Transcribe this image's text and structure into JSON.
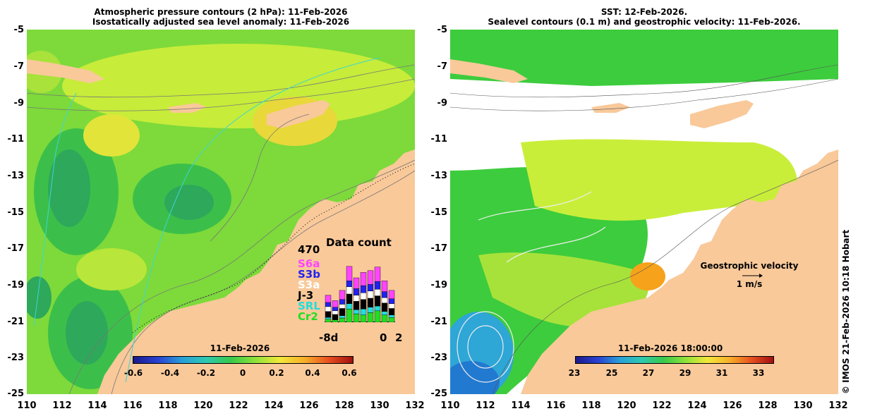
{
  "left_panel": {
    "title_line1": "Atmospheric pressure contours (2 hPa): 11-Feb-2026",
    "title_line2": "Isostatically adjusted sea level anomaly: 11-Feb-2026",
    "colorbar_title": "11-Feb-2026",
    "colorbar_ticks": [
      "-0.6",
      "-0.4",
      "-0.2",
      "0",
      "0.2",
      "0.4",
      "0.6"
    ],
    "inset": {
      "title": "Data count",
      "max_label": "470",
      "x_start": "-8d",
      "x_mid": "0",
      "x_end": "2",
      "satellites": [
        {
          "name": "S6a",
          "color": "#ff44ff"
        },
        {
          "name": "S3b",
          "color": "#2222ee"
        },
        {
          "name": "S3a",
          "color": "#ffffff"
        },
        {
          "name": "J-3",
          "color": "#000000"
        },
        {
          "name": "SRL",
          "color": "#22dddd"
        },
        {
          "name": "Cr2",
          "color": "#22dd22"
        }
      ],
      "bar_values": [
        [
          60,
          35,
          40,
          50,
          15,
          25
        ],
        [
          55,
          30,
          30,
          45,
          0,
          20
        ],
        [
          75,
          40,
          35,
          60,
          20,
          35
        ],
        [
          120,
          50,
          60,
          80,
          45,
          110
        ],
        [
          90,
          55,
          50,
          70,
          35,
          70
        ],
        [
          110,
          60,
          55,
          80,
          50,
          60
        ],
        [
          115,
          55,
          60,
          75,
          45,
          80
        ],
        [
          120,
          65,
          55,
          85,
          40,
          95
        ],
        [
          90,
          50,
          45,
          70,
          30,
          60
        ],
        [
          70,
          40,
          40,
          55,
          20,
          40
        ]
      ]
    }
  },
  "right_panel": {
    "title_line1": "SST: 12-Feb-2026.",
    "title_line2": "Sealevel contours (0.1 m) and geostrophic velocity: 11-Feb-2026.",
    "colorbar_title": "11-Feb-2026 18:00:00",
    "colorbar_ticks": [
      "23",
      "25",
      "27",
      "29",
      "31",
      "33"
    ],
    "legend_title": "Geostrophic velocity",
    "legend_scale": "1 m/s"
  },
  "axes": {
    "lat_ticks": [
      "-5",
      "-7",
      "-9",
      "-11",
      "-13",
      "-15",
      "-17",
      "-19",
      "-21",
      "-23",
      "-25"
    ],
    "lon_ticks": [
      "110",
      "112",
      "114",
      "116",
      "118",
      "120",
      "122",
      "124",
      "126",
      "128",
      "130",
      "132"
    ]
  },
  "credit": "© IMOS 21-Feb-2026 10:18 Hobart",
  "colors": {
    "land": "#f9c99a",
    "sla_green": "#55d84a",
    "sla_yellow": "#c9ee3a",
    "sla_darkgreen": "#2eaa55",
    "sst_white": "#ffffff",
    "sst_green": "#3dcc3d",
    "sst_cyan": "#2ea6d6"
  }
}
